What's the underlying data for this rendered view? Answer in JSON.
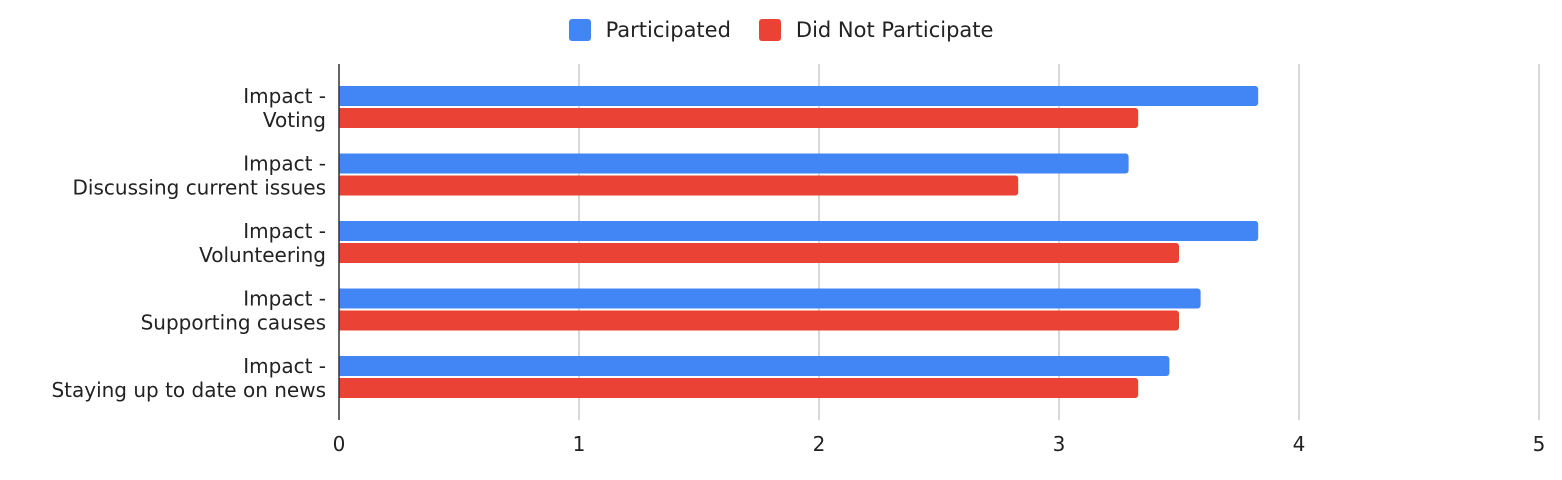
{
  "chart_data": {
    "type": "bar",
    "orientation": "horizontal",
    "categories": [
      [
        "Impact -",
        "Voting"
      ],
      [
        "Impact -",
        "Discussing current issues"
      ],
      [
        "Impact -",
        "Volunteering"
      ],
      [
        "Impact -",
        "Supporting causes"
      ],
      [
        "Impact -",
        "Staying up to date on news"
      ]
    ],
    "series": [
      {
        "name": "Participated",
        "color": "#4285f4",
        "values": [
          3.83,
          3.29,
          3.83,
          3.59,
          3.46
        ]
      },
      {
        "name": "Did Not Participate",
        "color": "#ea4335",
        "values": [
          3.33,
          2.83,
          3.5,
          3.5,
          3.33
        ]
      }
    ],
    "xlim": [
      0,
      5
    ],
    "xticks": [
      "0",
      "1",
      "2",
      "3",
      "4",
      "5"
    ],
    "grid": true,
    "legend_position": "top"
  }
}
